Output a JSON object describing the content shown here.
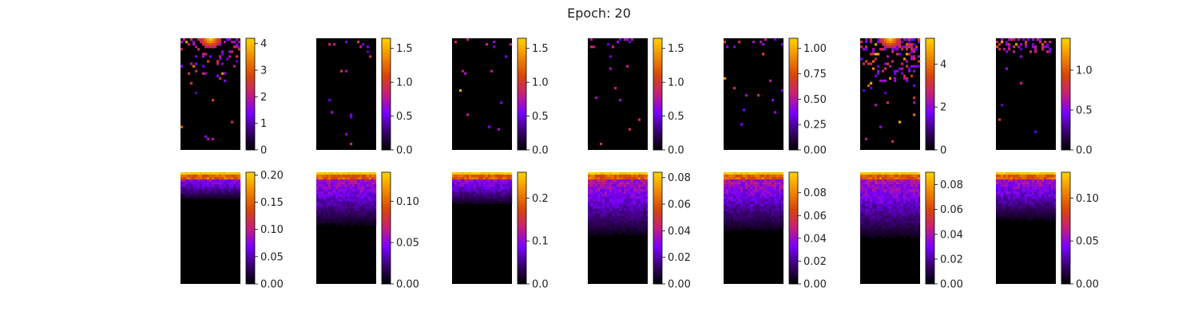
{
  "figure": {
    "title": "Epoch: 20"
  },
  "colormap": {
    "name": "gnuplot",
    "stops": [
      "#000000",
      "#3a0070",
      "#7a00ff",
      "#c51f7a",
      "#d6460a",
      "#f08a00",
      "#ffd400"
    ]
  },
  "chart_data": [
    {
      "type": "heatmap",
      "row": 0,
      "col": 0,
      "vmax": 4.2,
      "ticks": [
        0,
        1,
        2,
        3,
        4
      ],
      "tick_labels": [
        "0",
        "1",
        "2",
        "3",
        "4"
      ],
      "pattern": "sparse",
      "hotspot": "top-center"
    },
    {
      "type": "heatmap",
      "row": 0,
      "col": 1,
      "vmax": 1.65,
      "ticks": [
        0.0,
        0.5,
        1.0,
        1.5
      ],
      "tick_labels": [
        "0.0",
        "0.5",
        "1.0",
        "1.5"
      ],
      "pattern": "sparse",
      "hotspot": "none"
    },
    {
      "type": "heatmap",
      "row": 0,
      "col": 2,
      "vmax": 1.65,
      "ticks": [
        0.0,
        0.5,
        1.0,
        1.5
      ],
      "tick_labels": [
        "0.0",
        "0.5",
        "1.0",
        "1.5"
      ],
      "pattern": "sparse",
      "hotspot": "none"
    },
    {
      "type": "heatmap",
      "row": 0,
      "col": 3,
      "vmax": 1.65,
      "ticks": [
        0.0,
        0.5,
        1.0,
        1.5
      ],
      "tick_labels": [
        "0.0",
        "0.5",
        "1.0",
        "1.5"
      ],
      "pattern": "sparse",
      "hotspot": "none"
    },
    {
      "type": "heatmap",
      "row": 0,
      "col": 4,
      "vmax": 1.1,
      "ticks": [
        0.0,
        0.25,
        0.5,
        0.75,
        1.0
      ],
      "tick_labels": [
        "0.00",
        "0.25",
        "0.50",
        "0.75",
        "1.00"
      ],
      "pattern": "sparse",
      "hotspot": "none"
    },
    {
      "type": "heatmap",
      "row": 0,
      "col": 5,
      "vmax": 5.2,
      "ticks": [
        0,
        2,
        4
      ],
      "tick_labels": [
        "0",
        "2",
        "4"
      ],
      "pattern": "sparse-dense",
      "hotspot": "top-center"
    },
    {
      "type": "heatmap",
      "row": 0,
      "col": 6,
      "vmax": 1.4,
      "ticks": [
        0.0,
        0.5,
        1.0
      ],
      "tick_labels": [
        "0.0",
        "0.5",
        "1.0"
      ],
      "pattern": "sparse-top",
      "hotspot": "none"
    },
    {
      "type": "heatmap",
      "row": 1,
      "col": 0,
      "vmax": 0.205,
      "ticks": [
        0.0,
        0.05,
        0.1,
        0.15,
        0.2
      ],
      "tick_labels": [
        "0.00",
        "0.05",
        "0.10",
        "0.15",
        "0.20"
      ],
      "pattern": "gradient",
      "depth": 0.25
    },
    {
      "type": "heatmap",
      "row": 1,
      "col": 1,
      "vmax": 0.135,
      "ticks": [
        0.0,
        0.05,
        0.1
      ],
      "tick_labels": [
        "0.00",
        "0.05",
        "0.10"
      ],
      "pattern": "gradient",
      "depth": 0.5
    },
    {
      "type": "heatmap",
      "row": 1,
      "col": 2,
      "vmax": 0.26,
      "ticks": [
        0.0,
        0.1,
        0.2
      ],
      "tick_labels": [
        "0.0",
        "0.1",
        "0.2"
      ],
      "pattern": "gradient",
      "depth": 0.3
    },
    {
      "type": "heatmap",
      "row": 1,
      "col": 3,
      "vmax": 0.084,
      "ticks": [
        0.0,
        0.02,
        0.04,
        0.06,
        0.08
      ],
      "tick_labels": [
        "0.00",
        "0.02",
        "0.04",
        "0.06",
        "0.08"
      ],
      "pattern": "gradient",
      "depth": 0.6
    },
    {
      "type": "heatmap",
      "row": 1,
      "col": 4,
      "vmax": 0.098,
      "ticks": [
        0.0,
        0.02,
        0.04,
        0.06,
        0.08
      ],
      "tick_labels": [
        "0.00",
        "0.02",
        "0.04",
        "0.06",
        "0.08"
      ],
      "pattern": "gradient",
      "depth": 0.55
    },
    {
      "type": "heatmap",
      "row": 1,
      "col": 5,
      "vmax": 0.09,
      "ticks": [
        0.0,
        0.02,
        0.04,
        0.06,
        0.08
      ],
      "tick_labels": [
        "0.00",
        "0.02",
        "0.04",
        "0.06",
        "0.08"
      ],
      "pattern": "gradient",
      "depth": 0.62
    },
    {
      "type": "heatmap",
      "row": 1,
      "col": 6,
      "vmax": 0.13,
      "ticks": [
        0.0,
        0.05,
        0.1
      ],
      "tick_labels": [
        "0.00",
        "0.05",
        "0.10"
      ],
      "pattern": "gradient",
      "depth": 0.45
    }
  ]
}
